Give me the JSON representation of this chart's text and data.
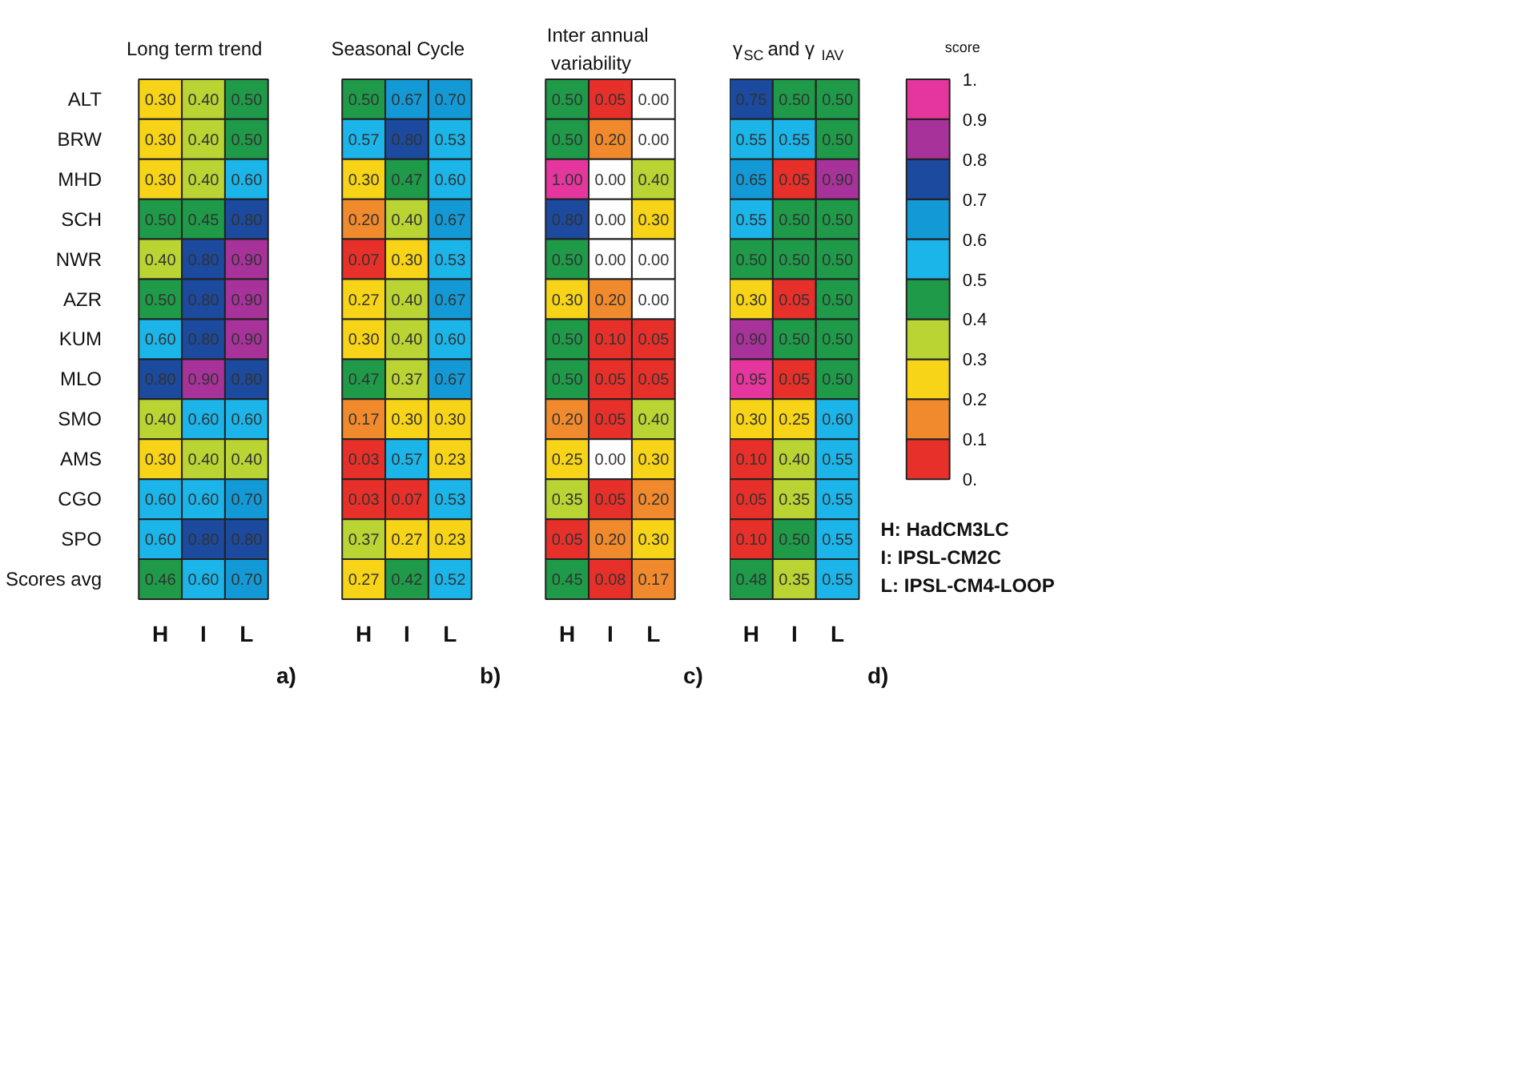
{
  "chart_data": [
    {
      "type": "heatmap",
      "title": "Long term trend",
      "categories": [
        "H",
        "I",
        "L"
      ],
      "y_categories": [
        "ALT",
        "BRW",
        "MHD",
        "SCH",
        "NWR",
        "AZR",
        "KUM",
        "MLO",
        "SMO",
        "AMS",
        "CGO",
        "SPO",
        "Scores avg"
      ],
      "cells": [
        [
          0.3,
          0.4,
          0.5
        ],
        [
          0.3,
          0.4,
          0.5
        ],
        [
          0.3,
          0.4,
          0.6
        ],
        [
          0.5,
          0.45,
          0.8
        ],
        [
          0.4,
          0.8,
          0.9
        ],
        [
          0.5,
          0.8,
          0.9
        ],
        [
          0.6,
          0.8,
          0.9
        ],
        [
          0.8,
          0.9,
          0.8
        ],
        [
          0.4,
          0.6,
          0.6
        ],
        [
          0.3,
          0.4,
          0.4
        ],
        [
          0.6,
          0.6,
          0.7
        ],
        [
          0.6,
          0.8,
          0.8
        ],
        [
          0.46,
          0.6,
          0.7
        ]
      ],
      "cell_labels": [
        [
          "0.30",
          "0.40",
          "0.50"
        ],
        [
          "0.30",
          "0.40",
          "0.50"
        ],
        [
          "0.30",
          "0.40",
          "0.60"
        ],
        [
          "0.50",
          "0.45",
          "0.80"
        ],
        [
          "0.40",
          "0.80",
          "0.90"
        ],
        [
          "0.50",
          "0.80",
          "0.90"
        ],
        [
          "0.60",
          "0.80",
          "0.90"
        ],
        [
          "0.80",
          "0.90",
          "0.80"
        ],
        [
          "0.40",
          "0.60",
          "0.60"
        ],
        [
          "0.30",
          "0.40",
          "0.40"
        ],
        [
          "0.60",
          "0.60",
          "0.70"
        ],
        [
          "0.60",
          "0.80",
          "0.80"
        ],
        [
          "0.46",
          "0.60",
          "0.70"
        ]
      ],
      "annotations": [
        "a)"
      ]
    },
    {
      "type": "heatmap",
      "title": "Seasonal Cycle",
      "categories": [
        "H",
        "I",
        "L"
      ],
      "y_categories": [
        null,
        null,
        null,
        null,
        null,
        null,
        null,
        null,
        null,
        null,
        null,
        null,
        null
      ],
      "cells": [
        [
          0.5,
          0.67,
          0.7
        ],
        [
          0.57,
          0.8,
          0.53
        ],
        [
          0.3,
          0.47,
          0.6
        ],
        [
          0.2,
          0.4,
          0.67
        ],
        [
          0.07,
          0.3,
          0.53
        ],
        [
          0.27,
          0.4,
          0.67
        ],
        [
          0.3,
          0.4,
          0.6
        ],
        [
          0.47,
          0.37,
          0.67
        ],
        [
          0.17,
          0.3,
          0.3
        ],
        [
          0.03,
          0.57,
          0.23
        ],
        [
          0.03,
          0.07,
          0.53
        ],
        [
          0.37,
          0.27,
          0.23
        ],
        [
          0.27,
          0.42,
          0.52
        ]
      ],
      "cell_labels": [
        [
          "0.50",
          "0.67",
          "0.70"
        ],
        [
          "0.57",
          "0.80",
          "0.53"
        ],
        [
          "0.30",
          "0.47",
          "0.60"
        ],
        [
          "0.20",
          "0.40",
          "0.67"
        ],
        [
          "0.07",
          "0.30",
          "0.53"
        ],
        [
          "0.27",
          "0.40",
          "0.67"
        ],
        [
          "0.30",
          "0.40",
          "0.60"
        ],
        [
          "0.47",
          "0.37",
          "0.67"
        ],
        [
          "0.17",
          "0.30",
          "0.30"
        ],
        [
          "0.03",
          "0.57",
          "0.23"
        ],
        [
          "0.03",
          "0.07",
          "0.53"
        ],
        [
          "0.37",
          "0.27",
          "0.23"
        ],
        [
          "0.27",
          "0.42",
          "0.52"
        ]
      ],
      "tick_labels": "x",
      "annotations": [
        "b)"
      ]
    },
    {
      "type": "heatmap",
      "title": "Inter annual\nvariability",
      "categories": [
        "H",
        "I",
        "L"
      ],
      "y_categories": [
        null,
        null,
        null,
        null,
        null,
        null,
        null,
        null,
        null,
        null,
        null,
        null,
        null
      ],
      "cells": [
        [
          0.5,
          0.05,
          0.0
        ],
        [
          0.5,
          0.2,
          0.0
        ],
        [
          1.0,
          0.0,
          0.4
        ],
        [
          0.8,
          0.0,
          0.3
        ],
        [
          0.5,
          0.0,
          0.0
        ],
        [
          0.3,
          0.2,
          0.0
        ],
        [
          0.5,
          0.1,
          0.05
        ],
        [
          0.5,
          0.05,
          0.05
        ],
        [
          0.2,
          0.05,
          0.4
        ],
        [
          0.25,
          0.0,
          0.3
        ],
        [
          0.35,
          0.05,
          0.2
        ],
        [
          0.05,
          0.2,
          0.3
        ],
        [
          0.45,
          0.08,
          0.17
        ]
      ],
      "cell_labels": [
        [
          "0.50",
          "0.05",
          "0.00"
        ],
        [
          "0.50",
          "0.20",
          "0.00"
        ],
        [
          "1.00",
          "0.00",
          "0.40"
        ],
        [
          "0.80",
          "0.00",
          "0.30"
        ],
        [
          "0.50",
          "0.00",
          "0.00"
        ],
        [
          "0.30",
          "0.20",
          "0.00"
        ],
        [
          "0.50",
          "0.10",
          "0.05"
        ],
        [
          "0.50",
          "0.05",
          "0.05"
        ],
        [
          "0.20",
          "0.05",
          "0.40"
        ],
        [
          "0.25",
          "0.00",
          "0.30"
        ],
        [
          "0.35",
          "0.05",
          "0.20"
        ],
        [
          "0.05",
          "0.20",
          "0.30"
        ],
        [
          "0.45",
          "0.08",
          "0.17"
        ]
      ],
      "tick_labels": "x",
      "annotations": [
        "c)"
      ]
    },
    {
      "type": "heatmap",
      "title": "γ$_{SC}$ and γ$_{IAV}$",
      "categories": [
        "H",
        "I",
        "L"
      ],
      "y_categories": [
        null,
        null,
        null,
        null,
        null,
        null,
        null,
        null,
        null,
        null,
        null,
        null,
        null
      ],
      "cells": [
        [
          0.75,
          0.5,
          0.5
        ],
        [
          0.55,
          0.55,
          0.5
        ],
        [
          0.65,
          0.05,
          0.9
        ],
        [
          0.55,
          0.5,
          0.5
        ],
        [
          0.5,
          0.5,
          0.5
        ],
        [
          0.3,
          0.05,
          0.5
        ],
        [
          0.9,
          0.5,
          0.5
        ],
        [
          0.95,
          0.05,
          0.5
        ],
        [
          0.3,
          0.25,
          0.6
        ],
        [
          0.1,
          0.4,
          0.55
        ],
        [
          0.05,
          0.35,
          0.55
        ],
        [
          0.1,
          0.5,
          0.55
        ],
        [
          0.48,
          0.35,
          0.55
        ]
      ],
      "cell_labels": [
        [
          "0.75",
          "0.50",
          "0.50"
        ],
        [
          "0.55",
          "0.55",
          "0.50"
        ],
        [
          "0.65",
          "0.05",
          "0.90"
        ],
        [
          "0.55",
          "0.50",
          "0.50"
        ],
        [
          "0.50",
          "0.50",
          "0.50"
        ],
        [
          "0.30",
          "0.05",
          "0.50"
        ],
        [
          "0.90",
          "0.50",
          "0.50"
        ],
        [
          "0.95",
          "0.05",
          "0.50"
        ],
        [
          "0.30",
          "0.25",
          "0.60"
        ],
        [
          "0.10",
          "0.40",
          "0.55"
        ],
        [
          "0.05",
          "0.35",
          "0.55"
        ],
        [
          "0.10",
          "0.50",
          "0.55"
        ],
        [
          "0.48",
          "0.35",
          "0.55"
        ]
      ],
      "colors": [
        "#e8302a",
        "#f08a2c",
        "#f7d417",
        "#b9d433",
        "#1e9a48",
        "#1bb5ea",
        "#139ad6",
        "#1b4a9e",
        "#a7329a",
        "#e5369e"
      ],
      "clim": [
        0,
        1
      ],
      "clabel": "score",
      "cticks": [
        {
          "value": 0,
          "label": "0."
        },
        0.1,
        0.2,
        0.3,
        0.4,
        0.5,
        0.6,
        0.7,
        0.8,
        0.9,
        {
          "value": 1,
          "label": "1."
        }
      ],
      "tick_labels": "x",
      "annotations": [
        "H: HadCM3LC",
        "I: IPSL-CM2C",
        "L: IPSL-CM4-LOOP",
        "d)"
      ]
    }
  ]
}
